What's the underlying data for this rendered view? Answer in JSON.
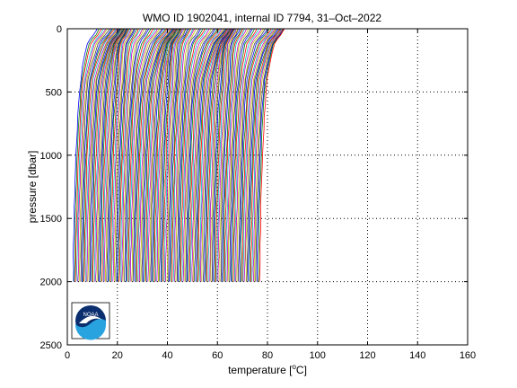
{
  "chart_data": {
    "type": "line",
    "title": "WMO ID 1902041, internal ID 7794, 31–Oct–2022",
    "xlabel_pre": "temperature [",
    "xlabel_sup": "o",
    "xlabel_post": "C]",
    "ylabel": "pressure [dbar]",
    "xlim": [
      0,
      160
    ],
    "ylim": [
      2500,
      0
    ],
    "y_reversed": true,
    "xticks": [
      0,
      20,
      40,
      60,
      80,
      100,
      120,
      140,
      160
    ],
    "yticks": [
      0,
      500,
      1000,
      1500,
      2000,
      2500
    ],
    "xtick_labels": [
      "0",
      "20",
      "40",
      "60",
      "80",
      "100",
      "120",
      "140",
      "160"
    ],
    "ytick_labels": [
      "0",
      "500",
      "1000",
      "1500",
      "2000",
      "2500"
    ],
    "grid": true,
    "grid_style": "dotted",
    "profile_count": 150,
    "profile_offset_per_cast": 0.5,
    "series_colors": [
      "#0000ff",
      "#008000",
      "#ff0000",
      "#00bfbf",
      "#bf00bf",
      "#bfbf00",
      "#404040"
    ],
    "profile_pressure_levels": [
      0,
      20,
      50,
      80,
      120,
      200,
      300,
      400,
      500,
      600,
      700,
      800,
      900,
      1000,
      1100,
      1200,
      1300,
      1400,
      1500,
      1600,
      1700,
      1800,
      1900,
      2000
    ],
    "profile_base_temperature": [
      12.0,
      11.4,
      10.5,
      9.2,
      8.0,
      7.0,
      6.1,
      5.4,
      4.9,
      4.5,
      4.2,
      3.95,
      3.7,
      3.5,
      3.3,
      3.15,
      3.0,
      2.87,
      2.75,
      2.65,
      2.55,
      2.47,
      2.4,
      2.33
    ],
    "logo": {
      "label": "NOAA"
    }
  }
}
